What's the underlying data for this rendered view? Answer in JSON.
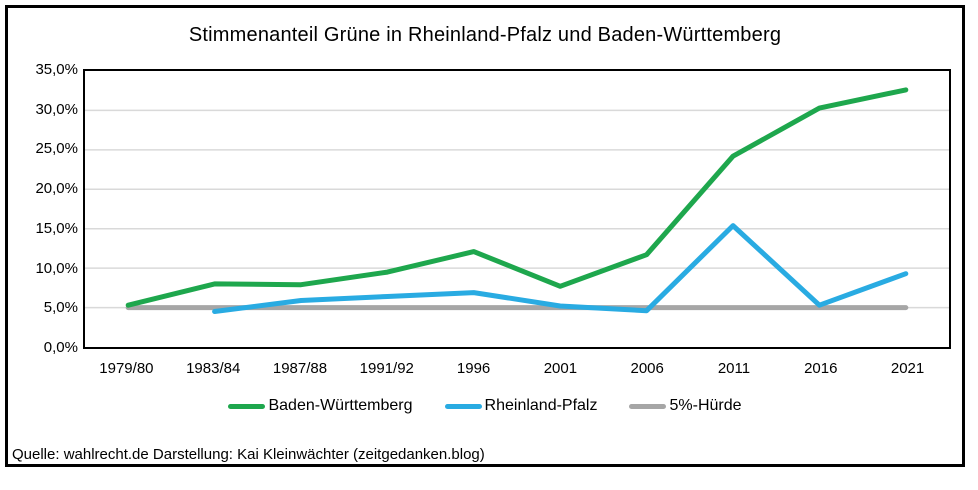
{
  "chart_data": {
    "type": "line",
    "title": "Stimmenanteil Grüne in Rheinland-Pfalz und Baden-Württemberg",
    "categories": [
      "1979/80",
      "1983/84",
      "1987/88",
      "1991/92",
      "1996",
      "2001",
      "2006",
      "2011",
      "2016",
      "2021"
    ],
    "series": [
      {
        "name": "Baden-Württemberg",
        "color": "#1ea74d",
        "values": [
          5.3,
          8.0,
          7.9,
          9.5,
          12.1,
          7.7,
          11.7,
          24.2,
          30.3,
          32.6
        ]
      },
      {
        "name": "Rheinland-Pfalz",
        "color": "#29abe2",
        "values": [
          null,
          4.5,
          5.9,
          6.4,
          6.9,
          5.2,
          4.6,
          15.4,
          5.3,
          9.3
        ]
      },
      {
        "name": "5%-Hürde",
        "color": "#a6a6a6",
        "values": [
          5,
          5,
          5,
          5,
          5,
          5,
          5,
          5,
          5,
          5
        ]
      }
    ],
    "xlabel": "",
    "ylabel": "",
    "ylim": [
      0,
      35
    ],
    "y_ticks": [
      "35,0%",
      "30,0%",
      "25,0%",
      "20,0%",
      "15,0%",
      "10,0%",
      "5,0%",
      "0,0%"
    ],
    "grid_values": [
      30,
      25,
      20,
      15,
      10,
      5
    ],
    "grid": "horizontal",
    "legend_position": "bottom",
    "draw_order": [
      2,
      0,
      1
    ],
    "line_width": 5
  },
  "source_note": "Quelle: wahlrecht.de Darstellung: Kai Kleinwächter (zeitgedanken.blog)",
  "colors": {
    "gridline": "#d9d9d9",
    "plot_border": "#000000",
    "frame_border": "#000000",
    "text": "#000000",
    "background": "#ffffff"
  }
}
